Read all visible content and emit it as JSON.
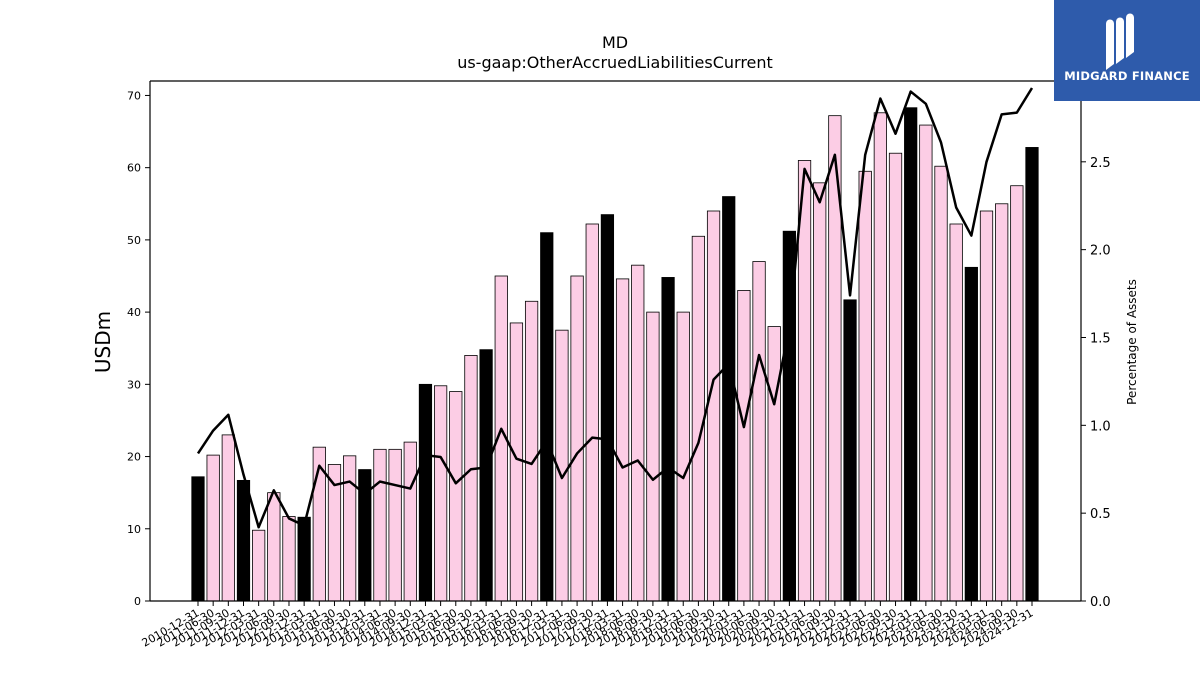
{
  "chart_data": {
    "type": "bar",
    "title": "MD",
    "subtitle": "us-gaap:OtherAccruedLiabilitiesCurrent",
    "ylabel": "USDm",
    "y2label": "Percentage of Assets",
    "ylim": [
      0,
      72
    ],
    "y2lim": [
      0,
      2.96
    ],
    "yticks": [
      "0",
      "10",
      "20",
      "30",
      "40",
      "50",
      "60",
      "70"
    ],
    "y2ticks": [
      "0.0",
      "0.5",
      "1.0",
      "1.5",
      "2.0",
      "2.5"
    ],
    "grid": false,
    "categories": [
      "2010-12-31",
      "2011-06-30",
      "2011-09-30",
      "2011-12-31",
      "2012-03-31",
      "2012-06-30",
      "2012-09-30",
      "2012-12-31",
      "2013-03-31",
      "2013-06-30",
      "2013-09-30",
      "2013-12-31",
      "2014-03-31",
      "2014-06-30",
      "2014-09-30",
      "2014-12-31",
      "2015-03-31",
      "2015-06-30",
      "2015-09-30",
      "2015-12-31",
      "2016-03-31",
      "2016-06-30",
      "2016-09-30",
      "2016-12-31",
      "2017-03-31",
      "2017-06-30",
      "2017-09-30",
      "2017-12-31",
      "2018-03-31",
      "2018-06-30",
      "2018-09-30",
      "2018-12-31",
      "2019-03-31",
      "2019-06-30",
      "2019-09-30",
      "2019-12-31",
      "2020-03-31",
      "2020-06-30",
      "2020-09-30",
      "2020-12-31",
      "2021-03-31",
      "2021-06-30",
      "2021-09-30",
      "2021-12-31",
      "2022-03-31",
      "2022-06-30",
      "2022-09-30",
      "2022-12-31",
      "2023-03-31",
      "2023-06-30",
      "2023-09-30",
      "2023-12-31",
      "2024-03-31",
      "2024-06-30",
      "2024-09-30",
      "2024-12-31"
    ],
    "series": [
      {
        "kind": "bar",
        "values": [
          17.2,
          20.2,
          23.0,
          16.7,
          9.8,
          15.0,
          11.7,
          11.6,
          21.3,
          18.9,
          20.1,
          18.2,
          21.0,
          21.0,
          22.0,
          30.0,
          29.8,
          29.0,
          34.0,
          34.8,
          45.0,
          38.5,
          41.5,
          51.0,
          37.5,
          45.0,
          52.2,
          53.5,
          44.6,
          46.5,
          40.0,
          44.8,
          40.0,
          50.5,
          54.0,
          56.0,
          43.0,
          47.0,
          38.0,
          51.2,
          61.0,
          57.9,
          67.2,
          41.7,
          59.5,
          67.6,
          62.0,
          68.3,
          65.9,
          60.2,
          52.2,
          46.2,
          54.0,
          55.0,
          57.5,
          62.8
        ],
        "colors": {
          "annual": "#000000",
          "quarterly": "#fccde5",
          "edge": "#000000"
        }
      },
      {
        "kind": "line",
        "axis": "right",
        "color": "#000000",
        "values": [
          0.84,
          0.97,
          1.06,
          0.72,
          0.42,
          0.63,
          0.47,
          0.43,
          0.77,
          0.66,
          0.68,
          0.61,
          0.68,
          0.66,
          0.64,
          0.83,
          0.82,
          0.67,
          0.75,
          0.76,
          0.98,
          0.81,
          0.78,
          0.91,
          0.7,
          0.84,
          0.93,
          0.92,
          0.76,
          0.8,
          0.69,
          0.76,
          0.7,
          0.9,
          1.26,
          1.35,
          0.99,
          1.4,
          1.12,
          1.56,
          2.46,
          2.27,
          2.54,
          1.74,
          2.54,
          2.86,
          2.66,
          2.9,
          2.83,
          2.61,
          2.24,
          2.08,
          2.5,
          2.77,
          2.78,
          2.92
        ]
      }
    ]
  },
  "logo": {
    "text": "MIDGARD FINANCE",
    "bg": "#2e5bab"
  }
}
